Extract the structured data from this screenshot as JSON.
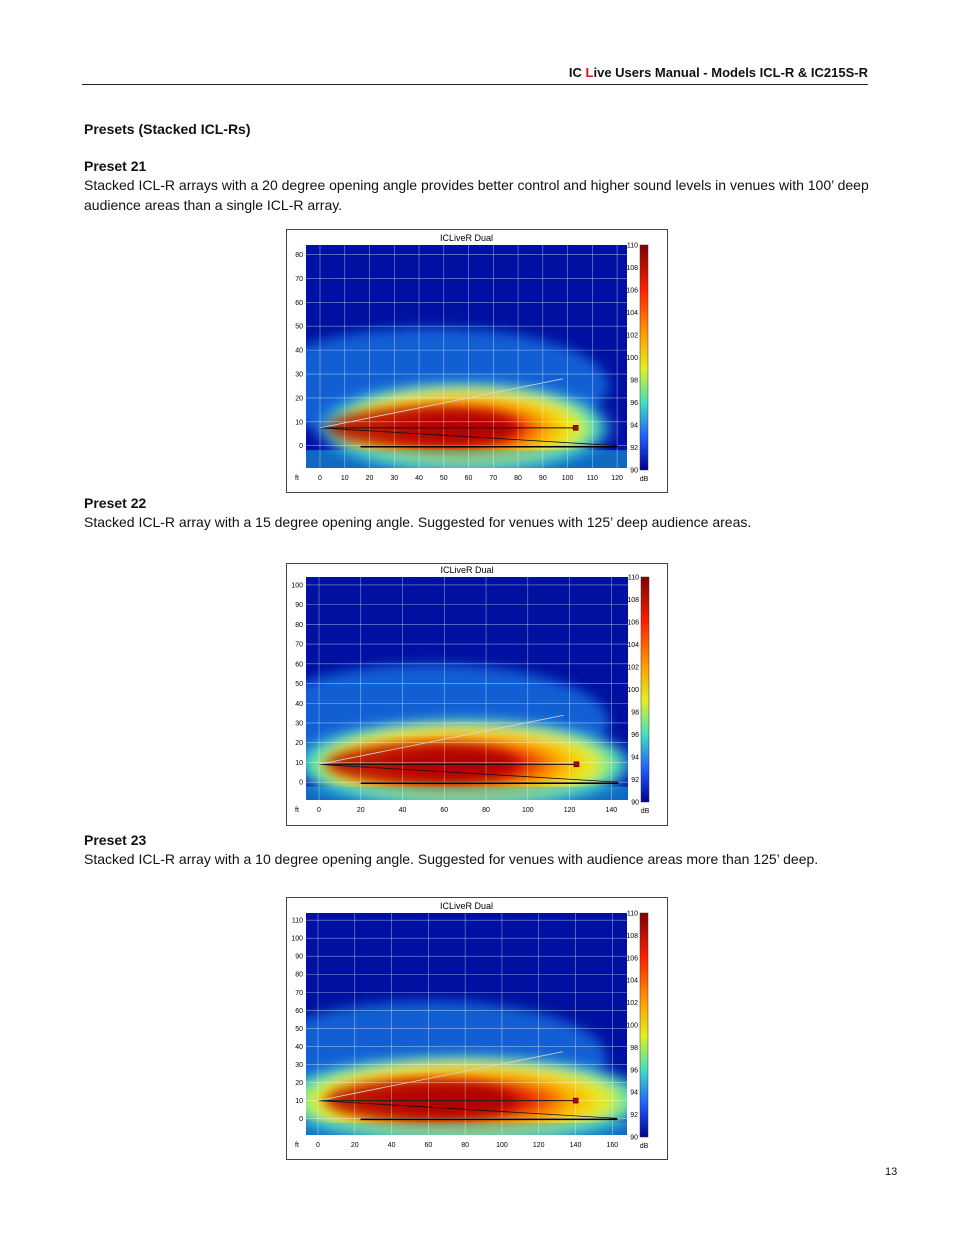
{
  "header": {
    "prefix": "IC ",
    "accent_letter": "L",
    "suffix": "ive Users Manual - Models  ICL-R & IC215S-R",
    "accent_color": "#dd1111"
  },
  "section_title": "Presets (Stacked ICL-Rs)",
  "presets": [
    {
      "title": "Preset  21",
      "description": "Stacked ICL-R arrays with a 20 degree opening angle provides better control and higher sound levels in venues with 100’ deep audience areas than a single ICL-R array.",
      "chart": {
        "title": "ICLiveR Dual",
        "unit_label": "ft",
        "x_ticks": [
          "0",
          "10",
          "20",
          "30",
          "40",
          "50",
          "60",
          "70",
          "80",
          "90",
          "100",
          "110",
          "120"
        ],
        "y_ticks": [
          "0",
          "10",
          "20",
          "30",
          "40",
          "50",
          "60",
          "70",
          "80"
        ],
        "colorbar_ticks": [
          "110",
          "108",
          "106",
          "104",
          "102",
          "100",
          "98",
          "96",
          "94",
          "92",
          "90"
        ],
        "colorbar_unit": "dB"
      }
    },
    {
      "title": "Preset 22",
      "description": "Stacked ICL-R array with a 15 degree opening angle.  Suggested for venues with 125’ deep audience areas.",
      "chart": {
        "title": "ICLiveR Dual",
        "unit_label": "ft",
        "x_ticks": [
          "0",
          "20",
          "40",
          "60",
          "80",
          "100",
          "120",
          "140"
        ],
        "y_ticks": [
          "0",
          "10",
          "20",
          "30",
          "40",
          "50",
          "60",
          "70",
          "80",
          "90",
          "100"
        ],
        "colorbar_ticks": [
          "110",
          "108",
          "106",
          "104",
          "102",
          "100",
          "98",
          "96",
          "94",
          "92",
          "90"
        ],
        "colorbar_unit": "dB"
      }
    },
    {
      "title": "Preset 23",
      "description": "Stacked ICL-R array with a 10 degree opening angle.  Suggested for venues with audience areas more than 125’ deep.",
      "chart": {
        "title": "ICLiveR Dual",
        "unit_label": "ft",
        "x_ticks": [
          "0",
          "20",
          "40",
          "60",
          "80",
          "100",
          "120",
          "140",
          "160"
        ],
        "y_ticks": [
          "0",
          "10",
          "20",
          "30",
          "40",
          "50",
          "60",
          "70",
          "80",
          "90",
          "100",
          "110"
        ],
        "colorbar_ticks": [
          "110",
          "108",
          "106",
          "104",
          "102",
          "100",
          "98",
          "96",
          "94",
          "92",
          "90"
        ],
        "colorbar_unit": "dB"
      }
    }
  ],
  "page_number": "13"
}
